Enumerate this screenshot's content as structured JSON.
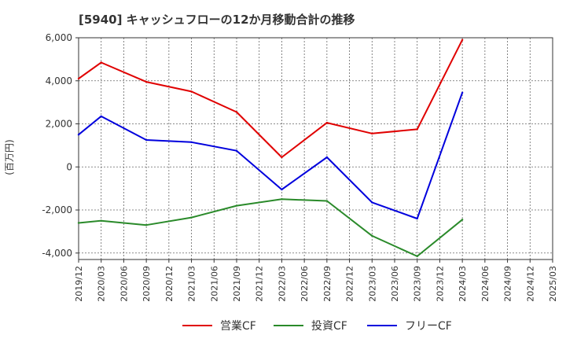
{
  "chart_data": {
    "type": "line",
    "title": "[5940]  キャッシュフローの12か月移動合計の推移",
    "ylabel": "(百万円)",
    "xlabel": "",
    "ylim": [
      -4300,
      6000
    ],
    "yticks": [
      -4000,
      -2000,
      0,
      2000,
      4000,
      6000
    ],
    "ytick_labels": [
      "-4,000",
      "-2,000",
      "0",
      "2,000",
      "4,000",
      "6,000"
    ],
    "categories": [
      "2019/12",
      "2020/03",
      "2020/06",
      "2020/09",
      "2020/12",
      "2021/03",
      "2021/06",
      "2021/09",
      "2021/12",
      "2022/03",
      "2022/06",
      "2022/09",
      "2022/12",
      "2023/03",
      "2023/06",
      "2023/09",
      "2023/12",
      "2024/03",
      "2024/06",
      "2024/09",
      "2024/12",
      "2025/03"
    ],
    "grid": true,
    "legend_position": "bottom",
    "series": [
      {
        "name": "営業CF",
        "color": "#e00000",
        "values": [
          4100,
          4850,
          null,
          3950,
          null,
          3500,
          null,
          2550,
          null,
          450,
          null,
          2050,
          null,
          1550,
          null,
          1750,
          null,
          5900,
          null,
          null,
          null,
          null
        ]
      },
      {
        "name": "投資CF",
        "color": "#2a8a2a",
        "values": [
          -2600,
          -2500,
          null,
          -2700,
          null,
          -2350,
          null,
          -1800,
          null,
          -1500,
          null,
          -1580,
          null,
          -3200,
          null,
          -4150,
          null,
          -2450,
          null,
          null,
          null,
          null
        ]
      },
      {
        "name": "フリーCF",
        "color": "#0000dd",
        "values": [
          1500,
          2350,
          null,
          1250,
          null,
          1150,
          null,
          750,
          null,
          -1050,
          null,
          450,
          null,
          -1650,
          null,
          -2400,
          null,
          3450,
          null,
          null,
          null,
          null
        ]
      }
    ]
  }
}
